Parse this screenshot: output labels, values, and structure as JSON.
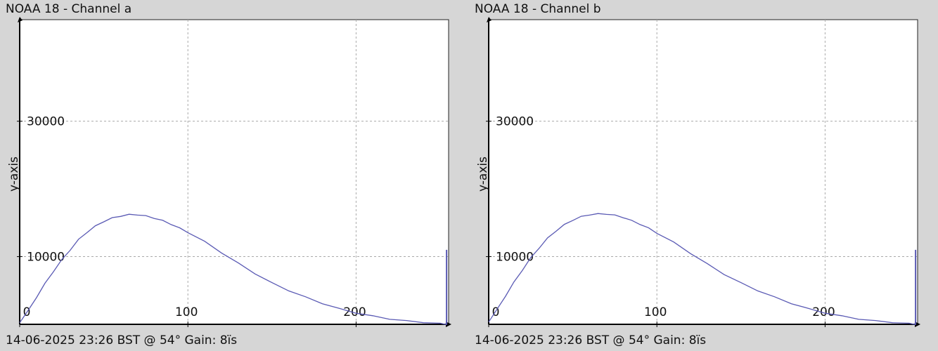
{
  "chart_data": [
    {
      "type": "line",
      "title": "NOAA 18 - Channel a",
      "footer": "14-06-2025 23:26 BST @ 54° Gain: 8ïs",
      "ylabel": "y-axis",
      "xlim": [
        0,
        255
      ],
      "ylim": [
        0,
        45000
      ],
      "xticks": [
        0,
        100,
        200
      ],
      "yticks": [
        10000,
        30000
      ],
      "grid": true,
      "series": [
        {
          "color": "#5a5ab4",
          "x": [
            0,
            5,
            10,
            15,
            20,
            25,
            30,
            35,
            40,
            45,
            50,
            55,
            60,
            65,
            70,
            75,
            80,
            85,
            90,
            95,
            100,
            110,
            120,
            130,
            140,
            150,
            160,
            170,
            180,
            190,
            200,
            210,
            220,
            230,
            240,
            250,
            254
          ],
          "y": [
            300,
            2000,
            4000,
            6000,
            7800,
            9500,
            11000,
            12500,
            13600,
            14500,
            15200,
            15700,
            16000,
            16200,
            16200,
            16000,
            15700,
            15300,
            14800,
            14200,
            13600,
            12200,
            10600,
            9000,
            7500,
            6100,
            5000,
            4000,
            3100,
            2300,
            1700,
            1200,
            800,
            500,
            300,
            100,
            0
          ]
        }
      ],
      "spike": {
        "x": 254,
        "y": 11000
      }
    },
    {
      "type": "line",
      "title": "NOAA 18 - Channel b",
      "footer": "14-06-2025 23:26 BST @ 54° Gain: 8ïs",
      "ylabel": "y-axis",
      "xlim": [
        0,
        255
      ],
      "ylim": [
        0,
        45000
      ],
      "xticks": [
        0,
        100,
        200
      ],
      "yticks": [
        10000,
        30000
      ],
      "grid": true,
      "series": [
        {
          "color": "#5a5ab4",
          "x": [
            0,
            5,
            10,
            15,
            20,
            25,
            30,
            35,
            40,
            45,
            50,
            55,
            60,
            65,
            70,
            75,
            80,
            85,
            90,
            95,
            100,
            110,
            120,
            130,
            140,
            150,
            160,
            170,
            180,
            190,
            200,
            210,
            220,
            230,
            240,
            250,
            254
          ],
          "y": [
            400,
            2200,
            4200,
            6200,
            8000,
            9800,
            11300,
            12700,
            13800,
            14700,
            15400,
            15900,
            16200,
            16300,
            16300,
            16100,
            15800,
            15300,
            14800,
            14200,
            13500,
            12100,
            10500,
            8900,
            7400,
            6100,
            5000,
            4000,
            3100,
            2300,
            1700,
            1200,
            800,
            500,
            300,
            100,
            0
          ]
        }
      ],
      "spike": {
        "x": 254,
        "y": 11000
      }
    }
  ]
}
